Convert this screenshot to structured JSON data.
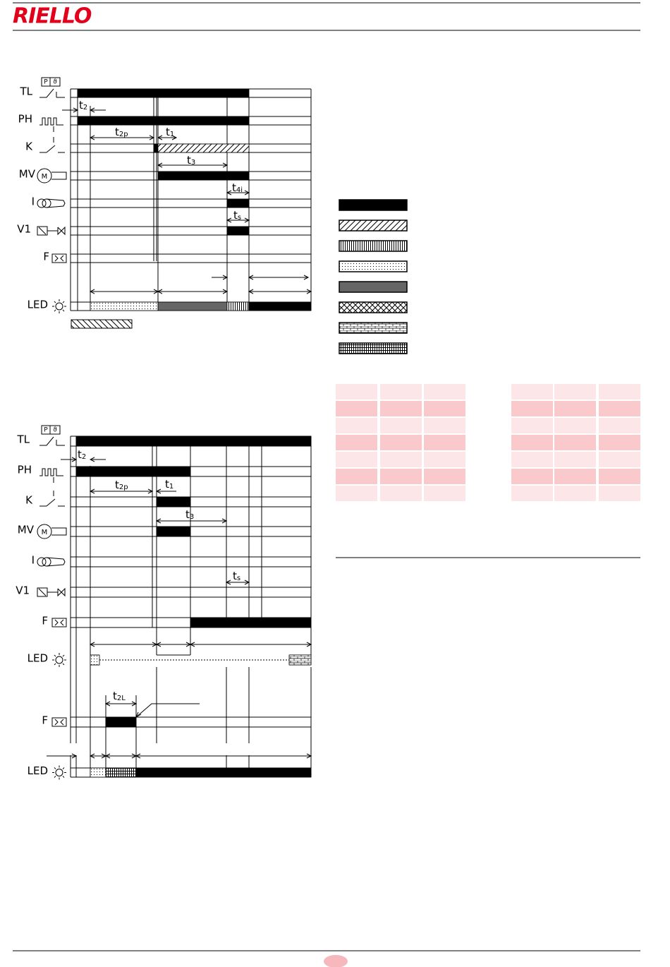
{
  "header": {
    "logo": "RIELLO"
  },
  "diagram_1": {
    "signals": [
      "TL",
      "PH",
      "K",
      "MV",
      "I",
      "V1",
      "F",
      "LED"
    ],
    "thermostat_box": [
      "P",
      "ϑ"
    ],
    "motor": "M",
    "timers": [
      {
        "main": "t",
        "sub": "2"
      },
      {
        "main": "t",
        "sub": "2p"
      },
      {
        "main": "t",
        "sub": "1"
      },
      {
        "main": "t",
        "sub": "3"
      },
      {
        "main": "t",
        "sub": "4i"
      },
      {
        "main": "t",
        "sub": "s"
      }
    ]
  },
  "diagram_2": {
    "signals": [
      "TL",
      "PH",
      "K",
      "MV",
      "I",
      "V1",
      "F",
      "LED",
      "F",
      "LED"
    ],
    "thermostat_box": [
      "P",
      "ϑ"
    ],
    "motor": "M",
    "timers": [
      {
        "main": "t",
        "sub": "2"
      },
      {
        "main": "t",
        "sub": "2p"
      },
      {
        "main": "t",
        "sub": "1"
      },
      {
        "main": "t",
        "sub": "3"
      },
      {
        "main": "t",
        "sub": "s"
      },
      {
        "main": "t",
        "sub": "2L"
      }
    ]
  }
}
